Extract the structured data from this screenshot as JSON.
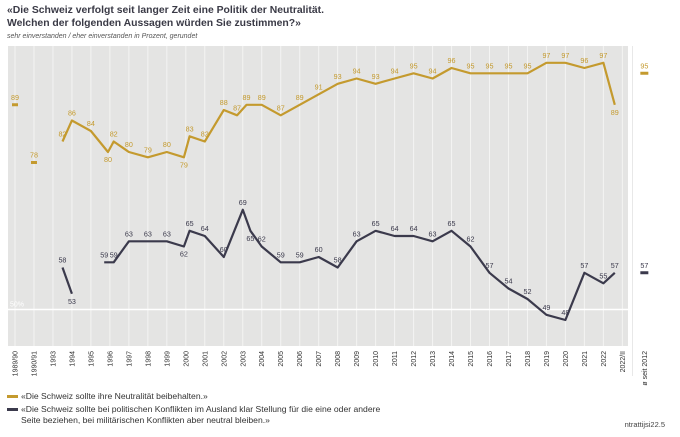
{
  "title_line1": "«Die Schweiz verfolgt seit langer Zeit eine Politik der Neutralität.",
  "title_line2": "Welchen der folgenden Aussagen würden Sie zustimmen?»",
  "subtitle": "sehr einverstanden / eher einverstanden in Prozent, gerundet",
  "legend": [
    {
      "label": "«Die Schweiz sollte ihre Neutralität beibehalten.»",
      "color": "#c49a2e"
    },
    {
      "label": "«Die Schweiz sollte bei politischen Konflikten im Ausland klar Stellung für die eine oder andere Seite beziehen, bei militärischen Konflikten aber neutral bleiben.»",
      "color": "#3b3a4c"
    }
  ],
  "source": "ntrattijsi22.5",
  "chart_data": {
    "type": "line",
    "title": "«Die Schweiz verfolgt seit langer Zeit eine Politik der Neutralität. Welchen der folgenden Aussagen würden Sie zustimmen?»",
    "ylabel": "sehr einverstanden / eher einverstanden in Prozent, gerundet",
    "ylim": [
      40,
      100
    ],
    "reference_line": {
      "value": 50,
      "label": "50%"
    },
    "x": [
      "1989/90",
      "1990/91",
      "1993",
      "1994",
      "1995",
      "1996",
      "1997",
      "1998",
      "1999",
      "2000",
      "2001",
      "2002",
      "2003",
      "2004",
      "2005",
      "2006",
      "2007",
      "2008",
      "2009",
      "2010",
      "2011",
      "2012",
      "2013",
      "2014",
      "2015",
      "2016",
      "2017",
      "2018",
      "2019",
      "2020",
      "2021",
      "2022",
      "2022/II",
      "ø seit 2012"
    ],
    "series": [
      {
        "name": "«Die Schweiz sollte ihre Neutralität beibehalten.»",
        "color": "#c49a2e",
        "points": [
          {
            "x": 0.0,
            "y": 89
          },
          {
            "x": 1.0,
            "y": 78
          },
          {
            "x": 2.5,
            "y": 82
          },
          {
            "x": 3.0,
            "y": 86
          },
          {
            "x": 4.0,
            "y": 84
          },
          {
            "x": 4.9,
            "y": 80
          },
          {
            "x": 5.2,
            "y": 82
          },
          {
            "x": 6.0,
            "y": 80
          },
          {
            "x": 7.0,
            "y": 79
          },
          {
            "x": 8.0,
            "y": 80
          },
          {
            "x": 8.9,
            "y": 79
          },
          {
            "x": 9.2,
            "y": 83
          },
          {
            "x": 10.0,
            "y": 82
          },
          {
            "x": 11.0,
            "y": 88
          },
          {
            "x": 11.7,
            "y": 87
          },
          {
            "x": 12.2,
            "y": 89
          },
          {
            "x": 13.0,
            "y": 89
          },
          {
            "x": 14.0,
            "y": 87
          },
          {
            "x": 15.0,
            "y": 89
          },
          {
            "x": 16.0,
            "y": 91
          },
          {
            "x": 17.0,
            "y": 93
          },
          {
            "x": 18.0,
            "y": 94
          },
          {
            "x": 19.0,
            "y": 93
          },
          {
            "x": 20.0,
            "y": 94
          },
          {
            "x": 21.0,
            "y": 95
          },
          {
            "x": 22.0,
            "y": 94
          },
          {
            "x": 23.0,
            "y": 96
          },
          {
            "x": 24.0,
            "y": 95
          },
          {
            "x": 25.0,
            "y": 95
          },
          {
            "x": 26.0,
            "y": 95
          },
          {
            "x": 27.0,
            "y": 95
          },
          {
            "x": 28.0,
            "y": 97
          },
          {
            "x": 29.0,
            "y": 97
          },
          {
            "x": 30.0,
            "y": 96
          },
          {
            "x": 31.0,
            "y": 97
          },
          {
            "x": 31.6,
            "y": 89
          }
        ],
        "segments": [
          [
            0,
            0
          ],
          [
            1,
            1
          ],
          [
            2,
            35
          ]
        ],
        "label_offsets": [
          -1,
          -1,
          -1,
          -1,
          -1,
          1,
          -1,
          -1,
          -1,
          -1,
          1,
          -1,
          -1,
          -1,
          -1,
          -1,
          -1,
          -1,
          -1,
          -1,
          -1,
          -1,
          -1,
          -1,
          -1,
          -1,
          -1,
          -1,
          -1,
          -1,
          -1,
          -1,
          -1,
          -1,
          -1,
          1
        ],
        "average": 95
      },
      {
        "name": "«Die Schweiz sollte bei politischen Konflikten im Ausland klar Stellung für die eine oder andere Seite beziehen, bei militärischen Konflikten aber neutral bleiben.»",
        "color": "#3b3a4c",
        "points": [
          {
            "x": 2.5,
            "y": 58
          },
          {
            "x": 3.0,
            "y": 53
          },
          {
            "x": 4.7,
            "y": 59
          },
          {
            "x": 5.2,
            "y": 59
          },
          {
            "x": 6.0,
            "y": 63
          },
          {
            "x": 7.0,
            "y": 63
          },
          {
            "x": 8.0,
            "y": 63
          },
          {
            "x": 8.9,
            "y": 62
          },
          {
            "x": 9.2,
            "y": 65
          },
          {
            "x": 10.0,
            "y": 64
          },
          {
            "x": 11.0,
            "y": 60
          },
          {
            "x": 12.0,
            "y": 69
          },
          {
            "x": 12.4,
            "y": 65
          },
          {
            "x": 13.0,
            "y": 62
          },
          {
            "x": 14.0,
            "y": 59
          },
          {
            "x": 15.0,
            "y": 59
          },
          {
            "x": 16.0,
            "y": 60
          },
          {
            "x": 17.0,
            "y": 58
          },
          {
            "x": 18.0,
            "y": 63
          },
          {
            "x": 19.0,
            "y": 65
          },
          {
            "x": 20.0,
            "y": 64
          },
          {
            "x": 21.0,
            "y": 64
          },
          {
            "x": 22.0,
            "y": 63
          },
          {
            "x": 23.0,
            "y": 65
          },
          {
            "x": 24.0,
            "y": 62
          },
          {
            "x": 25.0,
            "y": 57
          },
          {
            "x": 26.0,
            "y": 54
          },
          {
            "x": 27.0,
            "y": 52
          },
          {
            "x": 28.0,
            "y": 49
          },
          {
            "x": 29.0,
            "y": 48
          },
          {
            "x": 30.0,
            "y": 57
          },
          {
            "x": 31.0,
            "y": 55
          },
          {
            "x": 31.6,
            "y": 57
          }
        ],
        "segments": [
          [
            0,
            1
          ],
          [
            2,
            32
          ]
        ],
        "label_offsets": [
          -1,
          1,
          -1,
          -1,
          -1,
          -1,
          -1,
          1,
          -1,
          -1,
          -1,
          -1,
          1,
          -1,
          -1,
          -1,
          -1,
          -1,
          -1,
          -1,
          -1,
          -1,
          -1,
          -1,
          -1,
          -1,
          -1,
          -1,
          -1,
          -1,
          -1,
          -1,
          -1
        ],
        "average": 57
      }
    ]
  }
}
